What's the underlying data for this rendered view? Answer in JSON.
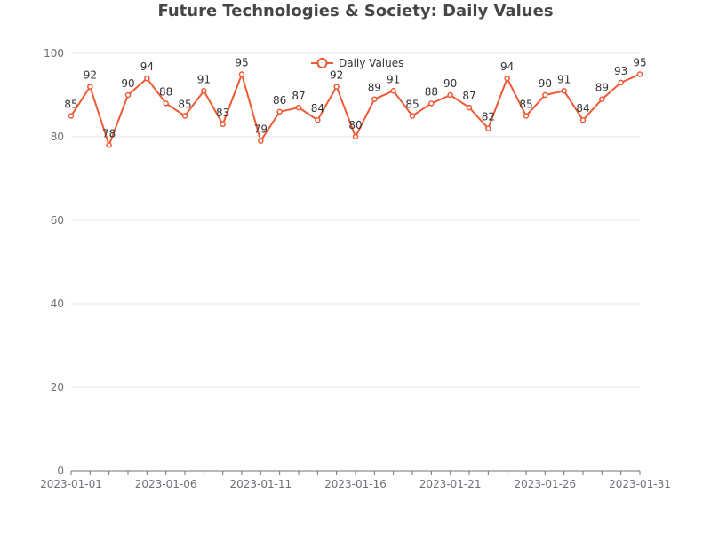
{
  "chart_data": {
    "type": "line",
    "title": "Future Technologies & Society: Daily Values",
    "xlabel": "",
    "ylabel": "",
    "ylim": [
      0,
      100
    ],
    "yticks": [
      0,
      20,
      40,
      60,
      80,
      100
    ],
    "xtick_labels": [
      "2023-01-01",
      "2023-01-06",
      "2023-01-11",
      "2023-01-16",
      "2023-01-21",
      "2023-01-26",
      "2023-01-31"
    ],
    "legend_position": "top-center",
    "grid": "horizontal",
    "color": "#ee5a35",
    "x": [
      "2023-01-01",
      "2023-01-02",
      "2023-01-03",
      "2023-01-04",
      "2023-01-05",
      "2023-01-06",
      "2023-01-07",
      "2023-01-08",
      "2023-01-09",
      "2023-01-10",
      "2023-01-11",
      "2023-01-12",
      "2023-01-13",
      "2023-01-14",
      "2023-01-15",
      "2023-01-16",
      "2023-01-17",
      "2023-01-18",
      "2023-01-19",
      "2023-01-20",
      "2023-01-21",
      "2023-01-22",
      "2023-01-23",
      "2023-01-24",
      "2023-01-25",
      "2023-01-26",
      "2023-01-27",
      "2023-01-28",
      "2023-01-29",
      "2023-01-30",
      "2023-01-31"
    ],
    "series": [
      {
        "name": "Daily Values",
        "values": [
          85,
          92,
          78,
          90,
          94,
          88,
          85,
          91,
          83,
          95,
          79,
          86,
          87,
          84,
          92,
          80,
          89,
          91,
          85,
          88,
          90,
          87,
          82,
          94,
          85,
          90,
          91,
          84,
          89,
          93,
          95
        ]
      }
    ]
  }
}
